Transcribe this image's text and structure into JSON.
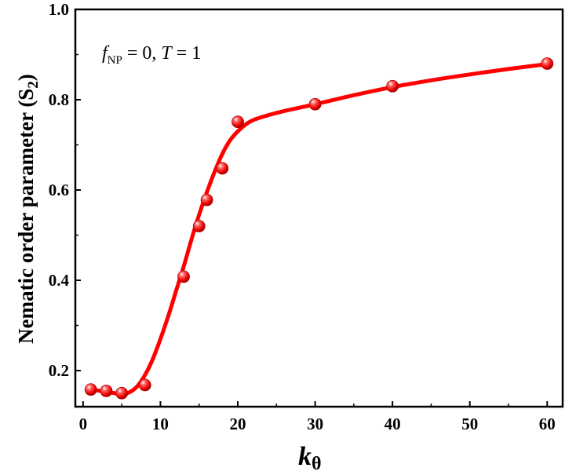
{
  "chart_data": {
    "type": "scatter",
    "title": "",
    "annotation": {
      "f": "f",
      "sub": "NP",
      "rest": " = 0, ",
      "T": "T",
      "rest2": " = 1"
    },
    "xlabel": "k",
    "xlabel_sub": "θ",
    "ylabel": "Nematic order parameter (S",
    "ylabel_sub": "2",
    "ylabel_close": ")",
    "xlim": [
      -1,
      62
    ],
    "ylim": [
      0.12,
      1.0
    ],
    "xticks": [
      0,
      10,
      20,
      30,
      40,
      50,
      60
    ],
    "yticks": [
      0.2,
      0.4,
      0.6,
      0.8,
      1.0
    ],
    "ytick_labels": [
      "0.2",
      "0.4",
      "0.6",
      "0.8",
      "1.0"
    ],
    "grid": false,
    "series": [
      {
        "marker": "sphere",
        "color": "#ff0000",
        "x": [
          1,
          3,
          5,
          8,
          13,
          15,
          16,
          18,
          20,
          30,
          40,
          60
        ],
        "y": [
          0.158,
          0.155,
          0.15,
          0.168,
          0.408,
          0.52,
          0.578,
          0.648,
          0.751,
          0.79,
          0.83,
          0.88
        ]
      }
    ],
    "fit_curve": {
      "color": "#ff0000",
      "x": [
        1,
        3,
        5,
        6,
        7,
        8,
        9,
        10,
        11,
        12,
        13,
        14,
        15,
        16,
        17,
        18,
        19,
        20,
        21,
        22,
        24,
        26,
        30,
        35,
        40,
        45,
        50,
        55,
        60
      ],
      "y": [
        0.158,
        0.153,
        0.148,
        0.152,
        0.165,
        0.19,
        0.225,
        0.27,
        0.32,
        0.375,
        0.43,
        0.49,
        0.545,
        0.595,
        0.64,
        0.68,
        0.71,
        0.73,
        0.745,
        0.755,
        0.766,
        0.775,
        0.79,
        0.81,
        0.828,
        0.843,
        0.856,
        0.868,
        0.879
      ]
    }
  }
}
